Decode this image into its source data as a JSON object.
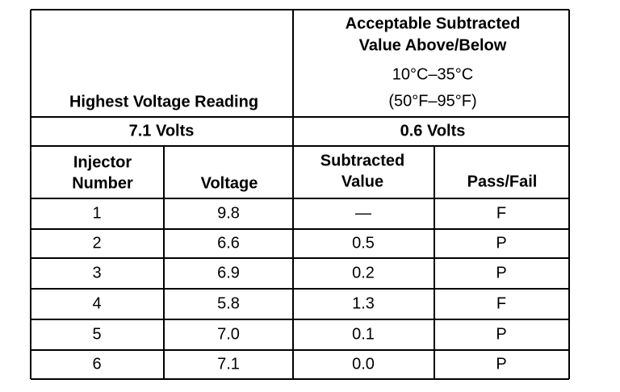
{
  "table": {
    "header": {
      "left": "Highest Voltage Reading",
      "right": [
        "Acceptable Subtracted",
        "Value Above/Below",
        "10°C–35°C",
        "(50°F–95°F)"
      ]
    },
    "summary": [
      "7.1 Volts",
      "0.6 Volts"
    ],
    "columns": [
      [
        "Injector",
        "Number"
      ],
      [
        "Voltage"
      ],
      [
        "Subtracted",
        "Value"
      ],
      [
        "Pass/Fail"
      ]
    ],
    "rows": [
      [
        "1",
        "9.8",
        "—",
        "F"
      ],
      [
        "2",
        "6.6",
        "0.5",
        "P"
      ],
      [
        "3",
        "6.9",
        "0.2",
        "P"
      ],
      [
        "4",
        "5.8",
        "1.3",
        "F"
      ],
      [
        "5",
        "7.0",
        "0.1",
        "P"
      ],
      [
        "6",
        "7.1",
        "0.0",
        "P"
      ]
    ]
  }
}
